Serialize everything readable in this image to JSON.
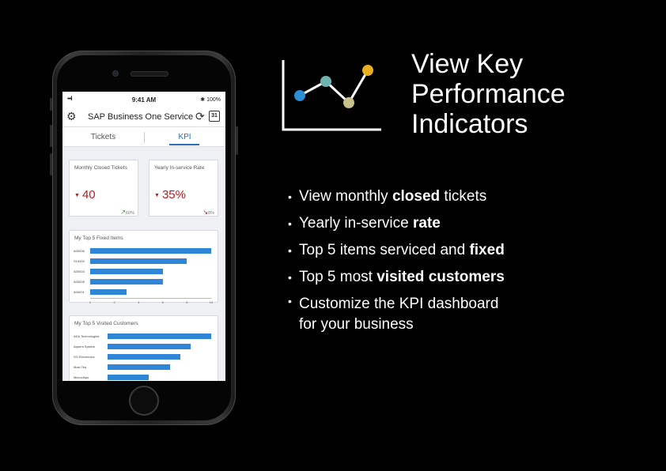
{
  "phone": {
    "status_bar": {
      "time": "9:41 AM",
      "signal": "•••ll",
      "battery": "✱ 100%"
    },
    "app": {
      "title": "SAP Business One Service",
      "calendar_day": "31",
      "tabs": [
        {
          "label": "Tickets"
        },
        {
          "label": "KPI"
        }
      ],
      "active_tab": "KPI",
      "kpi_cards": [
        {
          "title": "Monthly Closed Tickets",
          "value": "40",
          "trend": "60%",
          "trend_direction": "up"
        },
        {
          "title": "Yearly In-service Rate",
          "value": "35%",
          "trend": "8%",
          "trend_direction": "down"
        }
      ],
      "fixed_items_chart": {
        "title": "My Top 5 Fixed Items",
        "categories": [
          "A00006",
          "S10000",
          "A00003",
          "A00005",
          "A00001"
        ],
        "values": [
          10,
          8,
          6,
          6,
          3
        ],
        "ticks": [
          "0",
          "2",
          "4",
          "6",
          "8",
          "10"
        ],
        "xlim": [
          0,
          10
        ]
      },
      "visited_customers_chart": {
        "title": "My Top 5 Visited Customers",
        "categories": [
          "ADA Technologies",
          "Aquent System",
          "SG Electronics",
          "Maxi-Teq",
          "Microchips"
        ],
        "values": [
          10,
          8,
          7,
          6,
          4
        ],
        "ticks": [
          "0",
          "2",
          "4",
          "6",
          "8",
          "10"
        ],
        "xlim": [
          0,
          10
        ]
      }
    }
  },
  "headline": [
    "View Key",
    "Performance",
    "Indicators"
  ],
  "bullets": [
    {
      "pre": "View monthly ",
      "bold": "closed",
      "post": " tickets"
    },
    {
      "pre": "Yearly in-service ",
      "bold": "rate",
      "post": ""
    },
    {
      "pre": "Top 5 items serviced and ",
      "bold": "fixed",
      "post": ""
    },
    {
      "pre": "Top 5 most ",
      "bold": "visited customers",
      "post": ""
    },
    {
      "pre": "Customize the KPI dashboard",
      "line2": "for your business"
    }
  ],
  "icon": {
    "name": "line-chart-icon",
    "point_colors": [
      "#2a8fd4",
      "#6fb3b0",
      "#c8c28a",
      "#e8b020"
    ],
    "line_color": "#ffffff"
  }
}
